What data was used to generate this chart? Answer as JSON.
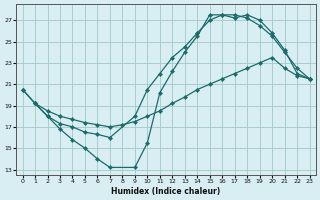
{
  "xlabel": "Humidex (Indice chaleur)",
  "bg_color": "#d9eef2",
  "grid_color": "#aacccc",
  "line_color": "#1a6b6b",
  "xlim": [
    -0.5,
    23.5
  ],
  "ylim": [
    12.5,
    28.5
  ],
  "xticks": [
    0,
    1,
    2,
    3,
    4,
    5,
    6,
    7,
    8,
    9,
    10,
    11,
    12,
    13,
    14,
    15,
    16,
    17,
    18,
    19,
    20,
    21,
    22,
    23
  ],
  "yticks": [
    13,
    15,
    17,
    19,
    21,
    23,
    25,
    27
  ],
  "line1_x": [
    0,
    1,
    2,
    3,
    4,
    5,
    6,
    7,
    9,
    10,
    11,
    12,
    13,
    14,
    15,
    16,
    17,
    18,
    19,
    20,
    21,
    22,
    23
  ],
  "line1_y": [
    20.5,
    19.2,
    18.0,
    16.8,
    15.8,
    15.0,
    14.0,
    13.2,
    13.2,
    15.5,
    20.2,
    22.2,
    24.0,
    25.5,
    27.5,
    27.5,
    27.2,
    27.5,
    27.0,
    25.8,
    24.2,
    22.0,
    21.5
  ],
  "line2_x": [
    0,
    1,
    2,
    3,
    4,
    5,
    6,
    7,
    9,
    10,
    11,
    12,
    13,
    14,
    15,
    16,
    17,
    18,
    19,
    20,
    21,
    22,
    23
  ],
  "line2_y": [
    20.5,
    19.2,
    18.0,
    17.3,
    17.0,
    16.5,
    16.3,
    16.0,
    18.0,
    20.5,
    22.0,
    23.5,
    24.5,
    25.8,
    27.0,
    27.5,
    27.5,
    27.2,
    26.5,
    25.5,
    24.0,
    22.5,
    21.5
  ],
  "line3_x": [
    1,
    2,
    3,
    4,
    5,
    6,
    7,
    8,
    9,
    10,
    11,
    12,
    13,
    14,
    15,
    16,
    17,
    18,
    19,
    20,
    21,
    22,
    23
  ],
  "line3_y": [
    19.2,
    18.5,
    18.0,
    17.7,
    17.4,
    17.2,
    17.0,
    17.2,
    17.5,
    18.0,
    18.5,
    19.2,
    19.8,
    20.5,
    21.0,
    21.5,
    22.0,
    22.5,
    23.0,
    23.5,
    22.5,
    21.8,
    21.5
  ]
}
